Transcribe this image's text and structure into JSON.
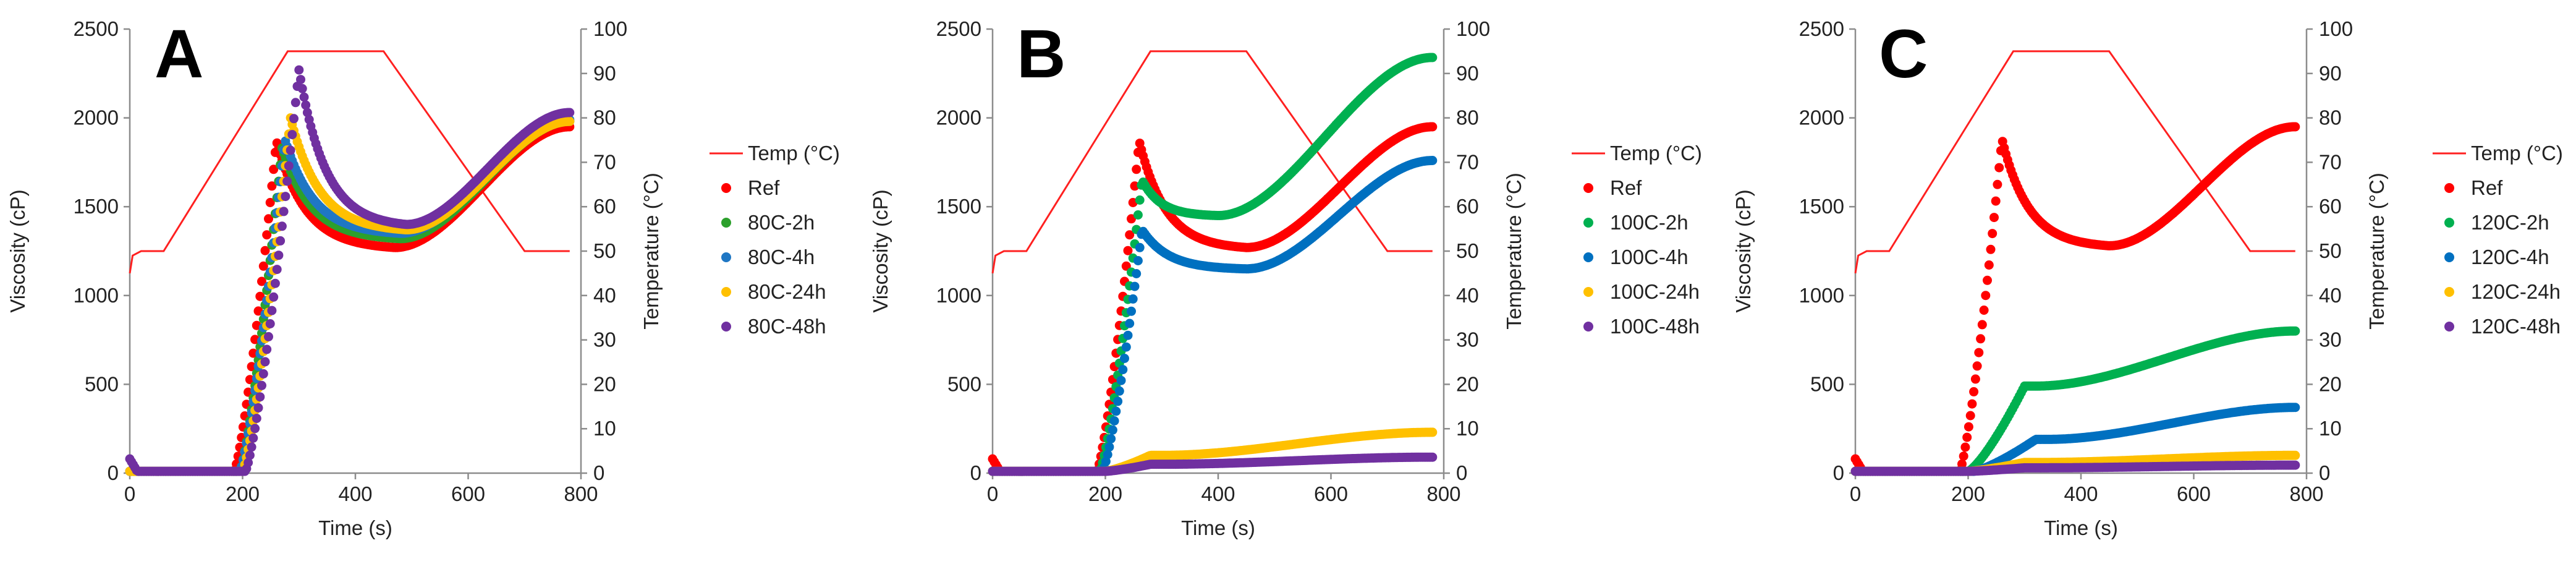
{
  "chart_data": [
    {
      "type": "scatter",
      "panel": "A",
      "xlabel": "Time (s)",
      "ylabel": "Viscosity (cP)",
      "y2label": "Temperature (°C)",
      "xlim": [
        0,
        800
      ],
      "ylim": [
        0,
        2500
      ],
      "y2lim": [
        0,
        100
      ],
      "xticks": [
        0,
        200,
        400,
        600,
        800
      ],
      "yticks": [
        0,
        500,
        1000,
        1500,
        2000,
        2500
      ],
      "y2ticks": [
        0,
        10,
        20,
        30,
        40,
        50,
        60,
        70,
        80,
        90,
        100
      ],
      "temp_label": "Temp (°C)",
      "series": [
        {
          "name": "Ref",
          "color": "#ff0000",
          "onset": 185,
          "peak_t": 260,
          "peak": 1870,
          "trough_t": 470,
          "trough": 1270,
          "end": 1950,
          "start": 0
        },
        {
          "name": "80C-2h",
          "color": "#2ca02c",
          "onset": 195,
          "peak_t": 270,
          "peak": 1830,
          "trough_t": 480,
          "trough": 1320,
          "end": 1980,
          "start": 0
        },
        {
          "name": "80C-4h",
          "color": "#1f77c4",
          "onset": 195,
          "peak_t": 275,
          "peak": 1880,
          "trough_t": 480,
          "trough": 1350,
          "end": 1990,
          "start": 0
        },
        {
          "name": "80C-24h",
          "color": "#ffc000",
          "onset": 200,
          "peak_t": 285,
          "peak": 2000,
          "trough_t": 490,
          "trough": 1370,
          "end": 1980,
          "start": 0
        },
        {
          "name": "80C-48h",
          "color": "#7030a0",
          "onset": 205,
          "peak_t": 300,
          "peak": 2270,
          "trough_t": 490,
          "trough": 1400,
          "end": 2030,
          "start": 80
        }
      ]
    },
    {
      "type": "scatter",
      "panel": "B",
      "xlabel": "Time (s)",
      "ylabel": "Viscosity (cP)",
      "y2label": "Temperature (°C)",
      "xlim": [
        0,
        800
      ],
      "ylim": [
        0,
        2500
      ],
      "y2lim": [
        0,
        100
      ],
      "xticks": [
        0,
        200,
        400,
        600,
        800
      ],
      "yticks": [
        0,
        500,
        1000,
        1500,
        2000,
        2500
      ],
      "y2ticks": [
        0,
        10,
        20,
        30,
        40,
        50,
        60,
        70,
        80,
        90,
        100
      ],
      "temp_label": "Temp (°C)",
      "series": [
        {
          "name": "Ref",
          "color": "#ff0000",
          "onset": 185,
          "peak_t": 260,
          "peak": 1870,
          "trough_t": 450,
          "trough": 1270,
          "end": 1950,
          "start": 80
        },
        {
          "name": "100C-2h",
          "color": "#00b050",
          "onset": 190,
          "peak_t": 265,
          "peak": 1650,
          "trough_t": 400,
          "trough": 1450,
          "end": 2340,
          "start": 0
        },
        {
          "name": "100C-4h",
          "color": "#0070c0",
          "onset": 195,
          "peak_t": 265,
          "peak": 1370,
          "trough_t": 450,
          "trough": 1150,
          "end": 1760,
          "start": 0
        },
        {
          "name": "100C-24h",
          "color": "#ffc000",
          "onset": 200,
          "peak_t": 280,
          "peak": 100,
          "trough_t": 300,
          "trough": 100,
          "end": 230,
          "start": 0
        },
        {
          "name": "100C-48h",
          "color": "#7030a0",
          "onset": 200,
          "peak_t": 280,
          "peak": 50,
          "trough_t": 300,
          "trough": 50,
          "end": 90,
          "start": 0
        }
      ]
    },
    {
      "type": "scatter",
      "panel": "C",
      "xlabel": "Time (s)",
      "ylabel": "Viscosity (cP)",
      "y2label": "Temperature (°C)",
      "xlim": [
        0,
        800
      ],
      "ylim": [
        0,
        2500
      ],
      "y2lim": [
        0,
        100
      ],
      "xticks": [
        0,
        200,
        400,
        600,
        800
      ],
      "yticks": [
        0,
        500,
        1000,
        1500,
        2000,
        2500
      ],
      "y2ticks": [
        0,
        10,
        20,
        30,
        40,
        50,
        60,
        70,
        80,
        90,
        100
      ],
      "temp_label": "Temp (°C)",
      "series": [
        {
          "name": "Ref",
          "color": "#ff0000",
          "onset": 185,
          "peak_t": 260,
          "peak": 1880,
          "trough_t": 450,
          "trough": 1280,
          "end": 1950,
          "start": 80
        },
        {
          "name": "120C-2h",
          "color": "#00b050",
          "onset": 200,
          "peak_t": 300,
          "peak": 490,
          "trough_t": 320,
          "trough": 490,
          "end": 800,
          "start": 0
        },
        {
          "name": "120C-4h",
          "color": "#0070c0",
          "onset": 210,
          "peak_t": 320,
          "peak": 190,
          "trough_t": 340,
          "trough": 190,
          "end": 370,
          "start": 0
        },
        {
          "name": "120C-24h",
          "color": "#ffc000",
          "onset": 200,
          "peak_t": 300,
          "peak": 60,
          "trough_t": 320,
          "trough": 60,
          "end": 100,
          "start": 0
        },
        {
          "name": "120C-48h",
          "color": "#7030a0",
          "onset": 200,
          "peak_t": 300,
          "peak": 30,
          "trough_t": 320,
          "trough": 30,
          "end": 45,
          "start": 0
        }
      ]
    }
  ],
  "temperature_profile": {
    "color": "#ff2020",
    "t": [
      0,
      5,
      20,
      60,
      280,
      300,
      450,
      700,
      780
    ],
    "temp": [
      45,
      49,
      50,
      50,
      95,
      95,
      95,
      50,
      50
    ]
  }
}
